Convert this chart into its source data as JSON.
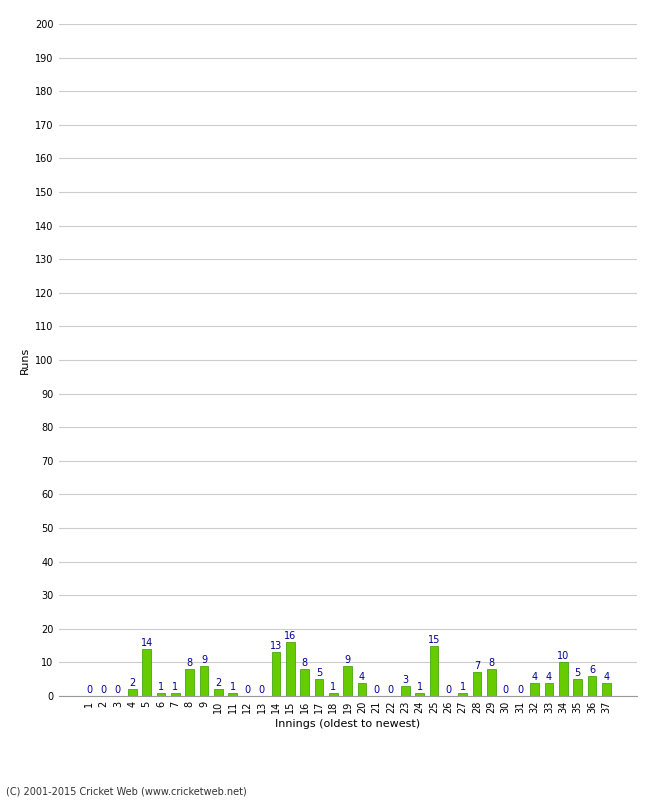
{
  "innings_labels": [
    "1",
    "2",
    "3",
    "4",
    "5",
    "6",
    "7",
    "8",
    "9",
    "10",
    "11",
    "12",
    "13",
    "14",
    "15",
    "16",
    "17",
    "18",
    "19",
    "20",
    "21",
    "22",
    "23",
    "24",
    "25",
    "26",
    "27",
    "28",
    "29",
    "30",
    "31",
    "32",
    "33",
    "34",
    "35",
    "36",
    "37"
  ],
  "values": [
    0,
    0,
    0,
    2,
    14,
    1,
    1,
    8,
    9,
    2,
    1,
    0,
    0,
    13,
    16,
    8,
    5,
    1,
    9,
    4,
    0,
    0,
    3,
    1,
    15,
    0,
    1,
    7,
    8,
    0,
    0,
    4,
    4,
    10,
    5,
    6,
    4
  ],
  "bar_color": "#66cc00",
  "bar_edge_color": "#339900",
  "label_color": "#000099",
  "ylabel": "Runs",
  "xlabel": "Innings (oldest to newest)",
  "ylim": [
    0,
    200
  ],
  "yticks": [
    0,
    10,
    20,
    30,
    40,
    50,
    60,
    70,
    80,
    90,
    100,
    110,
    120,
    130,
    140,
    150,
    160,
    170,
    180,
    190,
    200
  ],
  "grid_color": "#cccccc",
  "background_color": "#ffffff",
  "footer": "(C) 2001-2015 Cricket Web (www.cricketweb.net)",
  "label_fontsize": 7,
  "axis_fontsize": 7,
  "footer_fontsize": 7,
  "ylabel_fontsize": 8,
  "xlabel_fontsize": 8,
  "bar_width": 0.6
}
